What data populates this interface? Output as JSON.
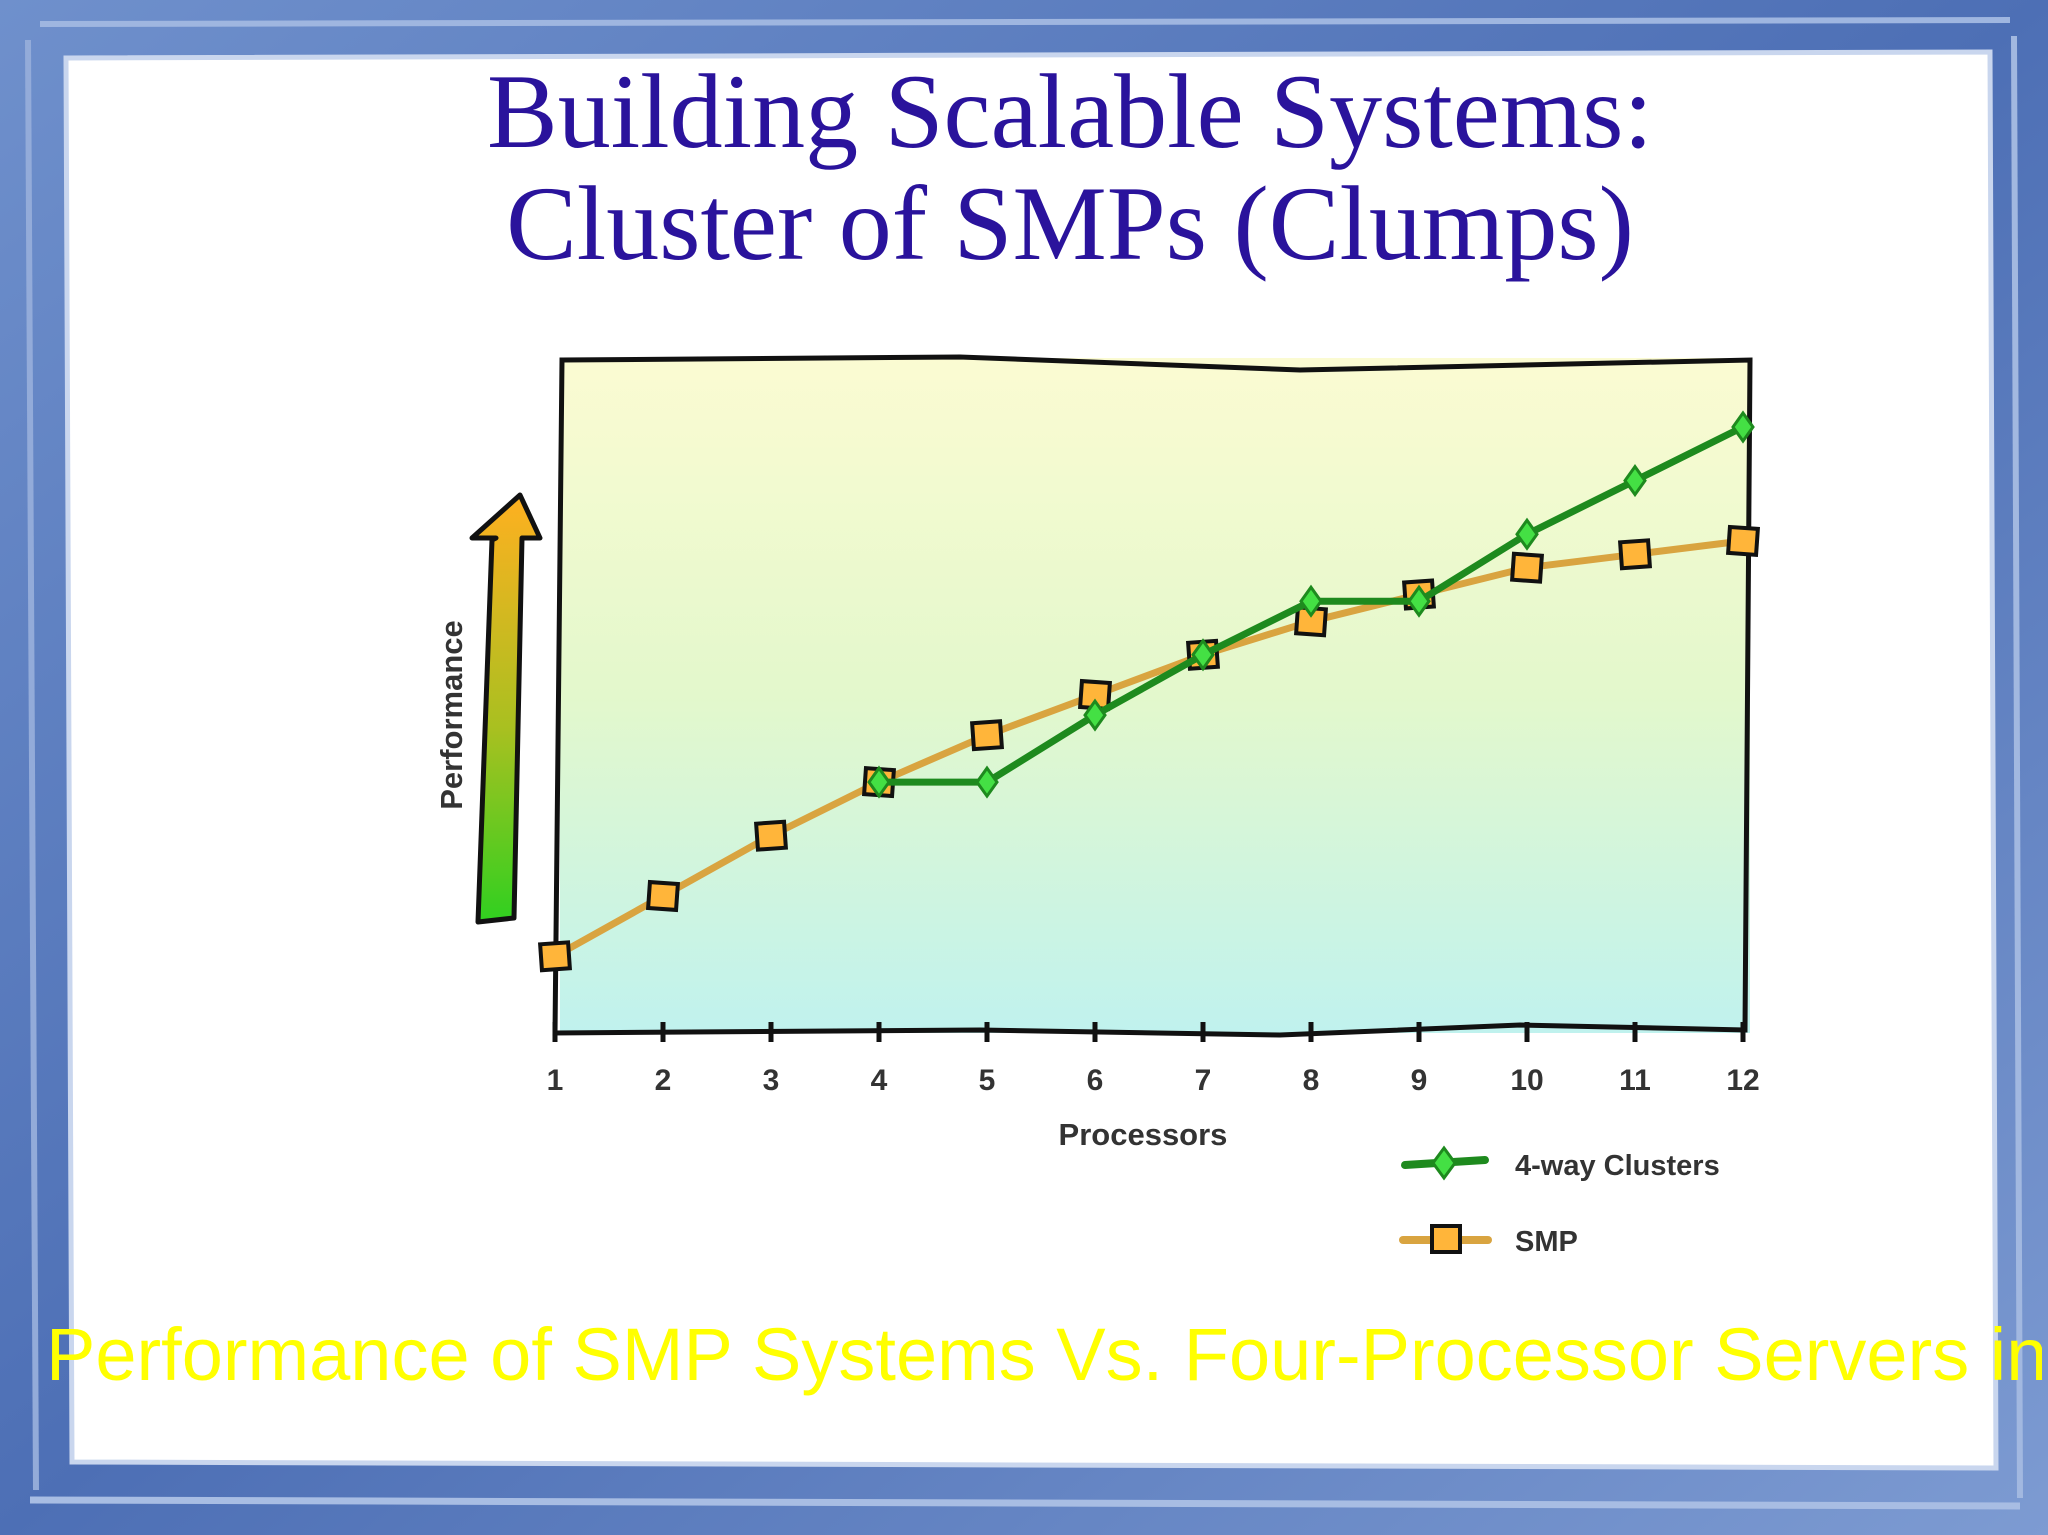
{
  "slide": {
    "title_line_1": "Building Scalable Systems:",
    "title_line_2": "Cluster of SMPs (Clumps)",
    "caption": "Performance of SMP Systems Vs. Four-Processor Servers in a"
  },
  "colors": {
    "title": "#2a139c",
    "caption": "#ffff00",
    "frame": "#5b7fbf",
    "cluster_line": "#1e8a1e",
    "cluster_marker": "#44e044",
    "smp_line": "#d9a440",
    "smp_marker": "#ffb53a"
  },
  "chart_data": {
    "type": "line",
    "xlabel": "Processors",
    "ylabel": "Performance",
    "x": [
      1,
      2,
      3,
      4,
      5,
      6,
      7,
      8,
      9,
      10,
      11,
      12
    ],
    "ylim": [
      0,
      100
    ],
    "grid": false,
    "legend": "bottom-right",
    "series": [
      {
        "name": "4-way Clusters",
        "x": [
          4,
          5,
          6,
          7,
          8,
          9,
          10,
          11,
          12
        ],
        "values": [
          37,
          37,
          47,
          56,
          64,
          64,
          74,
          82,
          90
        ],
        "color": "#1e8a1e",
        "marker": "diamond"
      },
      {
        "name": "SMP",
        "x": [
          1,
          2,
          3,
          4,
          5,
          6,
          7,
          8,
          9,
          10,
          11,
          12
        ],
        "values": [
          11,
          20,
          29,
          37,
          44,
          50,
          56,
          61,
          65,
          69,
          71,
          73
        ],
        "color": "#d9a440",
        "marker": "square"
      }
    ]
  }
}
